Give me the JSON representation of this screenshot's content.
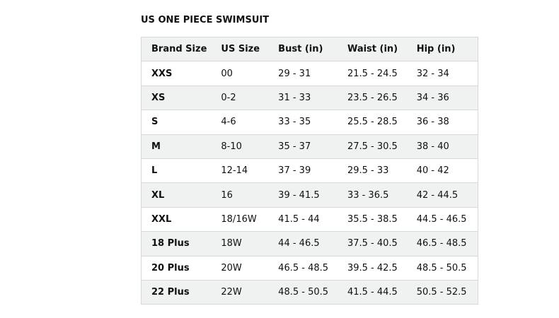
{
  "title": "US ONE PIECE SWIMSUIT",
  "table": {
    "header": [
      "Brand Size",
      "US Size",
      "Bust (in)",
      "Waist (in)",
      "Hip (in)"
    ],
    "rows": [
      [
        "XXS",
        "00",
        "29 - 31",
        "21.5 - 24.5",
        "32 - 34"
      ],
      [
        "XS",
        "0-2",
        "31 - 33",
        "23.5 - 26.5",
        "34 - 36"
      ],
      [
        "S",
        "4-6",
        "33 - 35",
        "25.5 - 28.5",
        "36 - 38"
      ],
      [
        "M",
        "8-10",
        "35 - 37",
        "27.5 - 30.5",
        "38 - 40"
      ],
      [
        "L",
        "12-14",
        "37 - 39",
        "29.5 - 33",
        "40 - 42"
      ],
      [
        "XL",
        "16",
        "39 - 41.5",
        "33 - 36.5",
        "42 - 44.5"
      ],
      [
        "XXL",
        "18/16W",
        "41.5 - 44",
        "35.5 - 38.5",
        "44.5 - 46.5"
      ],
      [
        "18 Plus",
        "18W",
        "44 - 46.5",
        "37.5 - 40.5",
        "46.5 - 48.5"
      ],
      [
        "20 Plus",
        "20W",
        "46.5 - 48.5",
        "39.5 - 42.5",
        "48.5 - 50.5"
      ],
      [
        "22 Plus",
        "22W",
        "48.5 - 50.5",
        "41.5 - 44.5",
        "50.5 - 52.5"
      ]
    ]
  }
}
